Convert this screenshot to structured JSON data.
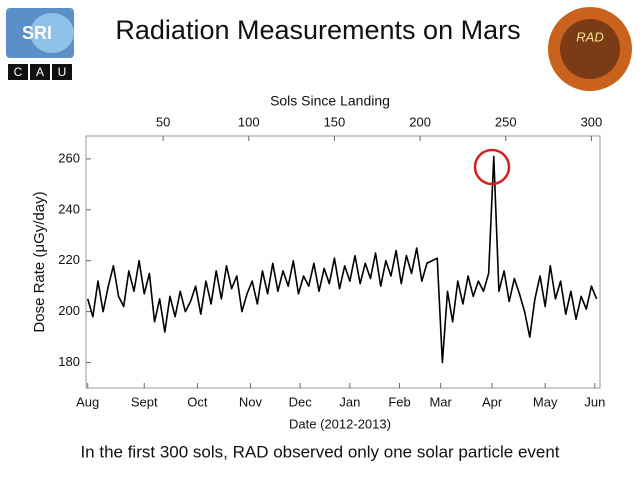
{
  "logos": {
    "left_top": "SRI",
    "left_bottom": [
      "C",
      "A",
      "U"
    ],
    "right": "RAD"
  },
  "chart_data": {
    "type": "line",
    "title": "Radiation Measurements on Mars",
    "caption": "In the first 300 sols, RAD observed only one solar particle event",
    "x_label": "Date (2012-2013)",
    "x2_label": "Sols Since Landing",
    "y_label": "Dose Rate (μGy/day)",
    "xlim": [
      5,
      305
    ],
    "ylim": [
      170,
      269
    ],
    "xticks": [
      {
        "value": 6,
        "label": "Aug"
      },
      {
        "value": 39,
        "label": "Sept"
      },
      {
        "value": 70,
        "label": "Oct"
      },
      {
        "value": 101,
        "label": "Nov"
      },
      {
        "value": 130,
        "label": "Dec"
      },
      {
        "value": 159,
        "label": "Jan"
      },
      {
        "value": 188,
        "label": "Feb"
      },
      {
        "value": 212,
        "label": "Mar"
      },
      {
        "value": 242,
        "label": "Apr"
      },
      {
        "value": 273,
        "label": "May"
      },
      {
        "value": 302,
        "label": "Jun"
      }
    ],
    "x2ticks": [
      50,
      100,
      150,
      200,
      250,
      300
    ],
    "yticks": [
      180,
      200,
      220,
      240,
      260
    ],
    "x": [
      6,
      9,
      12,
      15,
      18,
      21,
      24,
      27,
      30,
      33,
      36,
      39,
      42,
      45,
      48,
      51,
      54,
      57,
      60,
      63,
      66,
      69,
      72,
      75,
      78,
      81,
      84,
      87,
      90,
      93,
      96,
      99,
      102,
      105,
      108,
      111,
      114,
      117,
      120,
      123,
      126,
      129,
      132,
      135,
      138,
      141,
      144,
      147,
      150,
      153,
      156,
      159,
      162,
      165,
      168,
      171,
      174,
      177,
      180,
      183,
      186,
      189,
      192,
      195,
      198,
      201,
      204,
      207,
      210,
      213,
      216,
      219,
      222,
      225,
      228,
      231,
      234,
      237,
      240,
      243,
      246,
      249,
      252,
      255,
      258,
      261,
      264,
      267,
      270,
      273,
      276,
      279,
      282,
      285,
      288,
      291,
      294,
      297,
      300,
      303
    ],
    "series": [
      {
        "name": "Dose Rate",
        "color": "#000000",
        "values": [
          205,
          198,
          212,
          200,
          210,
          218,
          206,
          202,
          216,
          208,
          220,
          207,
          215,
          196,
          205,
          192,
          206,
          198,
          208,
          200,
          204,
          210,
          199,
          212,
          203,
          216,
          205,
          218,
          209,
          214,
          200,
          207,
          212,
          203,
          216,
          207,
          219,
          208,
          216,
          210,
          220,
          207,
          214,
          210,
          219,
          208,
          217,
          211,
          221,
          209,
          218,
          212,
          222,
          211,
          219,
          213,
          223,
          210,
          220,
          214,
          224,
          211,
          222,
          215,
          225,
          212,
          219,
          220,
          221,
          180,
          208,
          196,
          212,
          203,
          214,
          206,
          212,
          208,
          215,
          261,
          208,
          216,
          204,
          213,
          207,
          200,
          190,
          205,
          214,
          202,
          218,
          205,
          212,
          199,
          208,
          197,
          206,
          201,
          210,
          205
        ]
      }
    ]
  }
}
